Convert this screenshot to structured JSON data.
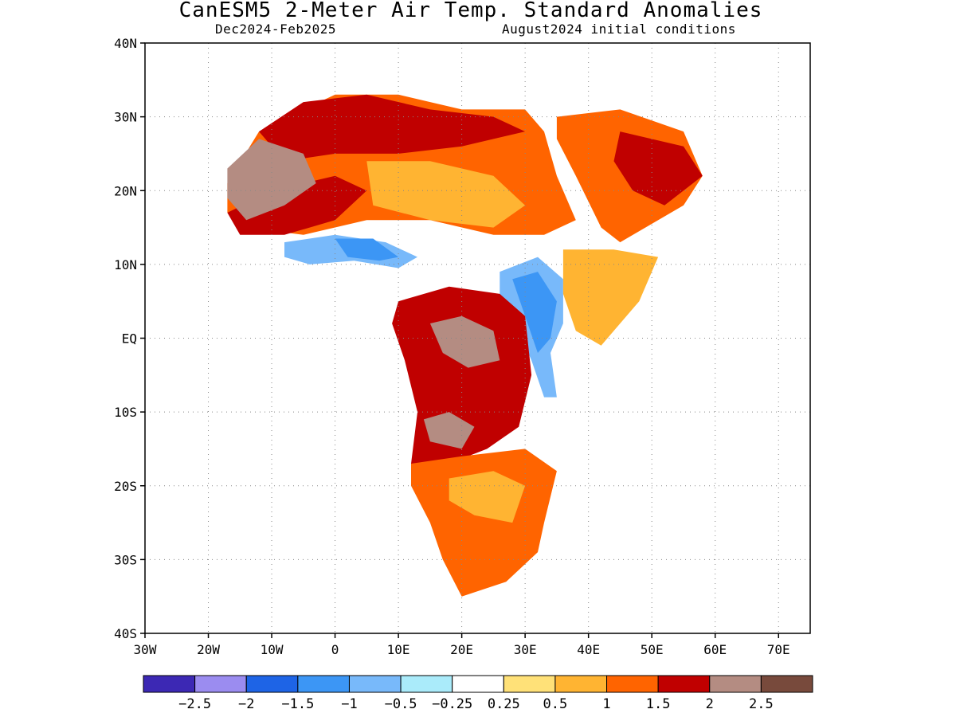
{
  "title": "CanESM5 2-Meter Air Temp. Standard Anomalies",
  "subtitle_left": "Dec2024-Feb2025",
  "subtitle_right": "August2024 initial conditions",
  "map": {
    "lon_range": [
      -30,
      75
    ],
    "lat_range": [
      -40,
      40
    ],
    "lon_ticks": [
      {
        "value": -30,
        "label": "30W"
      },
      {
        "value": -20,
        "label": "20W"
      },
      {
        "value": -10,
        "label": "10W"
      },
      {
        "value": 0,
        "label": "0"
      },
      {
        "value": 10,
        "label": "10E"
      },
      {
        "value": 20,
        "label": "20E"
      },
      {
        "value": 30,
        "label": "30E"
      },
      {
        "value": 40,
        "label": "40E"
      },
      {
        "value": 50,
        "label": "50E"
      },
      {
        "value": 60,
        "label": "60E"
      },
      {
        "value": 70,
        "label": "70E"
      }
    ],
    "lat_ticks": [
      {
        "value": 40,
        "label": "40N"
      },
      {
        "value": 30,
        "label": "30N"
      },
      {
        "value": 20,
        "label": "20N"
      },
      {
        "value": 10,
        "label": "10N"
      },
      {
        "value": 0,
        "label": "EQ"
      },
      {
        "value": -10,
        "label": "10S"
      },
      {
        "value": -20,
        "label": "20S"
      },
      {
        "value": -30,
        "label": "30S"
      },
      {
        "value": -40,
        "label": "40S"
      }
    ],
    "grid": "dotted"
  },
  "colorbar": {
    "bins": [
      {
        "color": "#3c28b4",
        "min": null,
        "max": -2.5
      },
      {
        "color": "#9b8cf0",
        "min": -2.5,
        "max": -2
      },
      {
        "color": "#1e64e6",
        "min": -2,
        "max": -1.5
      },
      {
        "color": "#3c96f5",
        "min": -1.5,
        "max": -1
      },
      {
        "color": "#78b9fa",
        "min": -1,
        "max": -0.5
      },
      {
        "color": "#aaebfa",
        "min": -0.5,
        "max": -0.25
      },
      {
        "color": "#ffffff",
        "min": -0.25,
        "max": 0.25
      },
      {
        "color": "#ffe178",
        "min": 0.25,
        "max": 0.5
      },
      {
        "color": "#ffb432",
        "min": 0.5,
        "max": 1
      },
      {
        "color": "#ff6400",
        "min": 1,
        "max": 1.5
      },
      {
        "color": "#c00000",
        "min": 1.5,
        "max": 2
      },
      {
        "color": "#b48c82",
        "min": 2,
        "max": 2.5
      },
      {
        "color": "#784a3c",
        "min": 2.5,
        "max": null
      }
    ],
    "labels": [
      "-2.5",
      "-2",
      "-1.5",
      "-1",
      "-0.5",
      "-0.25",
      "0.25",
      "0.5",
      "1",
      "1.5",
      "2",
      "2.5"
    ]
  },
  "anomaly_regions": [
    {
      "name": "north-africa-warm",
      "bin": 9,
      "polygon": [
        [
          -17,
          21
        ],
        [
          -12,
          28
        ],
        [
          -5,
          31
        ],
        [
          0,
          33
        ],
        [
          10,
          33
        ],
        [
          20,
          31
        ],
        [
          30,
          31
        ],
        [
          33,
          28
        ],
        [
          35,
          22
        ],
        [
          38,
          16
        ],
        [
          33,
          14
        ],
        [
          25,
          14
        ],
        [
          15,
          16
        ],
        [
          5,
          16
        ],
        [
          -5,
          14
        ],
        [
          -14,
          15
        ],
        [
          -17,
          17
        ]
      ]
    },
    {
      "name": "sahara-hot-band",
      "bin": 10,
      "polygon": [
        [
          -12,
          28
        ],
        [
          -5,
          32
        ],
        [
          5,
          33
        ],
        [
          15,
          31
        ],
        [
          25,
          30
        ],
        [
          30,
          28
        ],
        [
          20,
          26
        ],
        [
          10,
          25
        ],
        [
          0,
          25
        ],
        [
          -8,
          24
        ]
      ]
    },
    {
      "name": "sahel-hot-band",
      "bin": 10,
      "polygon": [
        [
          -17,
          17
        ],
        [
          -10,
          20
        ],
        [
          0,
          22
        ],
        [
          5,
          20
        ],
        [
          0,
          16
        ],
        [
          -8,
          14
        ],
        [
          -15,
          14
        ]
      ]
    },
    {
      "name": "mauritania-extreme",
      "bin": 11,
      "polygon": [
        [
          -17,
          23
        ],
        [
          -12,
          27
        ],
        [
          -5,
          25
        ],
        [
          -3,
          21
        ],
        [
          -8,
          18
        ],
        [
          -14,
          16
        ],
        [
          -17,
          19
        ]
      ]
    },
    {
      "name": "sahara-central-moderate",
      "bin": 8,
      "polygon": [
        [
          5,
          24
        ],
        [
          15,
          24
        ],
        [
          25,
          22
        ],
        [
          30,
          18
        ],
        [
          25,
          15
        ],
        [
          15,
          16
        ],
        [
          6,
          18
        ]
      ]
    },
    {
      "name": "sahel-cool",
      "bin": 4,
      "polygon": [
        [
          -8,
          13
        ],
        [
          0,
          14
        ],
        [
          8,
          13
        ],
        [
          13,
          11
        ],
        [
          10,
          9.5
        ],
        [
          3,
          10.5
        ],
        [
          -4,
          10
        ],
        [
          -8,
          11
        ]
      ]
    },
    {
      "name": "sahel-cool-core",
      "bin": 3,
      "polygon": [
        [
          0,
          13.5
        ],
        [
          6,
          13.5
        ],
        [
          10,
          11
        ],
        [
          7,
          10.5
        ],
        [
          2,
          11
        ]
      ]
    },
    {
      "name": "east-africa-cool",
      "bin": 4,
      "polygon": [
        [
          26,
          9
        ],
        [
          32,
          11
        ],
        [
          36,
          8
        ],
        [
          36,
          2
        ],
        [
          34,
          -2
        ],
        [
          35,
          -8
        ],
        [
          33,
          -8
        ],
        [
          31,
          -3
        ],
        [
          28,
          3
        ],
        [
          26,
          6
        ]
      ]
    },
    {
      "name": "east-africa-cool-core",
      "bin": 3,
      "polygon": [
        [
          28,
          8
        ],
        [
          32,
          9
        ],
        [
          35,
          5
        ],
        [
          34,
          0
        ],
        [
          32,
          -2
        ],
        [
          30,
          3
        ]
      ]
    },
    {
      "name": "congo-hot",
      "bin": 10,
      "polygon": [
        [
          10,
          5
        ],
        [
          18,
          7
        ],
        [
          26,
          6
        ],
        [
          30,
          3
        ],
        [
          31,
          -5
        ],
        [
          29,
          -12
        ],
        [
          24,
          -15
        ],
        [
          18,
          -17
        ],
        [
          12,
          -17
        ],
        [
          13,
          -10
        ],
        [
          11,
          -3
        ],
        [
          9,
          2
        ]
      ]
    },
    {
      "name": "congo-extreme",
      "bin": 11,
      "polygon": [
        [
          15,
          2
        ],
        [
          20,
          3
        ],
        [
          25,
          1
        ],
        [
          26,
          -3
        ],
        [
          21,
          -4
        ],
        [
          17,
          -2
        ]
      ]
    },
    {
      "name": "angola-extreme",
      "bin": 11,
      "polygon": [
        [
          14,
          -11
        ],
        [
          18,
          -10
        ],
        [
          22,
          -12
        ],
        [
          20,
          -15
        ],
        [
          15,
          -14
        ]
      ]
    },
    {
      "name": "southern-africa-warm",
      "bin": 9,
      "polygon": [
        [
          12,
          -17
        ],
        [
          20,
          -16
        ],
        [
          30,
          -15
        ],
        [
          35,
          -18
        ],
        [
          33,
          -25
        ],
        [
          32,
          -29
        ],
        [
          27,
          -33
        ],
        [
          20,
          -35
        ],
        [
          17,
          -30
        ],
        [
          15,
          -25
        ],
        [
          12,
          -20
        ]
      ]
    },
    {
      "name": "southern-africa-moderate",
      "bin": 8,
      "polygon": [
        [
          18,
          -19
        ],
        [
          25,
          -18
        ],
        [
          30,
          -20
        ],
        [
          28,
          -25
        ],
        [
          22,
          -24
        ],
        [
          18,
          -22
        ]
      ]
    },
    {
      "name": "arabia-warm",
      "bin": 9,
      "polygon": [
        [
          35,
          30
        ],
        [
          45,
          31
        ],
        [
          55,
          28
        ],
        [
          58,
          22
        ],
        [
          55,
          18
        ],
        [
          45,
          13
        ],
        [
          42,
          15
        ],
        [
          38,
          22
        ],
        [
          35,
          27
        ]
      ]
    },
    {
      "name": "arabia-hot",
      "bin": 10,
      "polygon": [
        [
          45,
          28
        ],
        [
          55,
          26
        ],
        [
          58,
          22
        ],
        [
          52,
          18
        ],
        [
          47,
          20
        ],
        [
          44,
          24
        ]
      ]
    },
    {
      "name": "horn-of-africa-warm",
      "bin": 8,
      "polygon": [
        [
          36,
          12
        ],
        [
          44,
          12
        ],
        [
          51,
          11
        ],
        [
          48,
          5
        ],
        [
          42,
          -1
        ],
        [
          38,
          1
        ],
        [
          36,
          6
        ]
      ]
    }
  ]
}
